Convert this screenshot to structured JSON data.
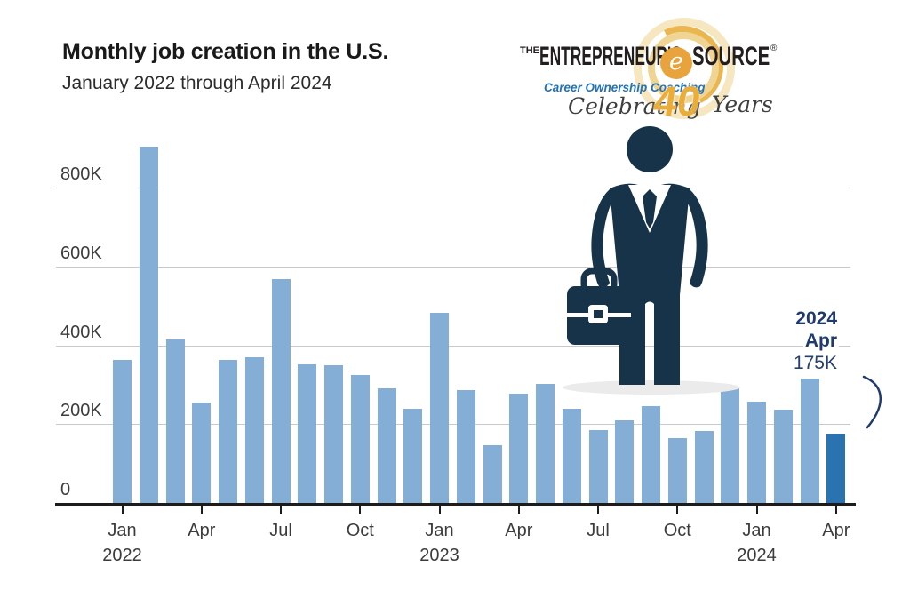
{
  "header": {
    "title": "Monthly job creation in the U.S.",
    "subtitle": "January 2022 through April 2024"
  },
  "logo": {
    "the": "THE",
    "entrepreneurs": "ENTREPRENEUR'S",
    "e": "e",
    "source": "SOURCE",
    "registered": "®",
    "tagline": "Career Ownership Coaching",
    "celebrating": "Celebrating",
    "forty": "40",
    "years": "Years",
    "colors": {
      "ink": "#231F20",
      "blue": "#2272B5",
      "gold": "#EBAD3A",
      "pale_gold": "#F0D494"
    }
  },
  "figure_icon": "businessman-with-briefcase",
  "chart_data": {
    "type": "bar",
    "title": "Monthly job creation in the U.S.",
    "subtitle": "January 2022 through April 2024",
    "unit": "jobs (thousands)",
    "ylim": [
      0,
      950
    ],
    "grid": "horizontal",
    "legend": "none",
    "yticks": [
      {
        "value": 0,
        "label": "0"
      },
      {
        "value": 200,
        "label": "200K"
      },
      {
        "value": 400,
        "label": "400K"
      },
      {
        "value": 600,
        "label": "600K"
      },
      {
        "value": 800,
        "label": "800K"
      }
    ],
    "xticks": [
      {
        "index": 0,
        "line1": "Jan",
        "line2": "2022"
      },
      {
        "index": 3,
        "line1": "Apr"
      },
      {
        "index": 6,
        "line1": "Jul"
      },
      {
        "index": 9,
        "line1": "Oct"
      },
      {
        "index": 12,
        "line1": "Jan",
        "line2": "2023"
      },
      {
        "index": 15,
        "line1": "Apr"
      },
      {
        "index": 18,
        "line1": "Jul"
      },
      {
        "index": 21,
        "line1": "Oct"
      },
      {
        "index": 24,
        "line1": "Jan",
        "line2": "2024"
      },
      {
        "index": 27,
        "line1": "Apr"
      }
    ],
    "months": [
      {
        "month": "Jan 2022",
        "value": 364
      },
      {
        "month": "Feb 2022",
        "value": 904
      },
      {
        "month": "Mar 2022",
        "value": 414
      },
      {
        "month": "Apr 2022",
        "value": 254
      },
      {
        "month": "May 2022",
        "value": 364
      },
      {
        "month": "Jun 2022",
        "value": 370
      },
      {
        "month": "Jul 2022",
        "value": 568
      },
      {
        "month": "Aug 2022",
        "value": 352
      },
      {
        "month": "Sep 2022",
        "value": 350
      },
      {
        "month": "Oct 2022",
        "value": 324
      },
      {
        "month": "Nov 2022",
        "value": 290
      },
      {
        "month": "Dec 2022",
        "value": 239
      },
      {
        "month": "Jan 2023",
        "value": 482
      },
      {
        "month": "Feb 2023",
        "value": 287
      },
      {
        "month": "Mar 2023",
        "value": 146
      },
      {
        "month": "Apr 2023",
        "value": 278
      },
      {
        "month": "May 2023",
        "value": 303
      },
      {
        "month": "Jun 2023",
        "value": 240
      },
      {
        "month": "Jul 2023",
        "value": 184
      },
      {
        "month": "Aug 2023",
        "value": 210
      },
      {
        "month": "Sep 2023",
        "value": 246
      },
      {
        "month": "Oct 2023",
        "value": 165
      },
      {
        "month": "Nov 2023",
        "value": 182
      },
      {
        "month": "Dec 2023",
        "value": 290
      },
      {
        "month": "Jan 2024",
        "value": 256
      },
      {
        "month": "Feb 2024",
        "value": 236
      },
      {
        "month": "Mar 2024",
        "value": 315
      },
      {
        "month": "Apr 2024",
        "value": 175
      }
    ],
    "highlight_index": 27,
    "colors": {
      "bar": "#85AED6",
      "highlight_bar": "#2B72B0",
      "grid": "#C9C9C9",
      "axis": "#1C1C1C",
      "tick_label": "#3C3C3C",
      "annotation": "#1E3A6E",
      "figure_navy": "#16334A"
    },
    "annotation": {
      "line1": "2024",
      "line2": "Apr",
      "line3": "175K"
    }
  }
}
